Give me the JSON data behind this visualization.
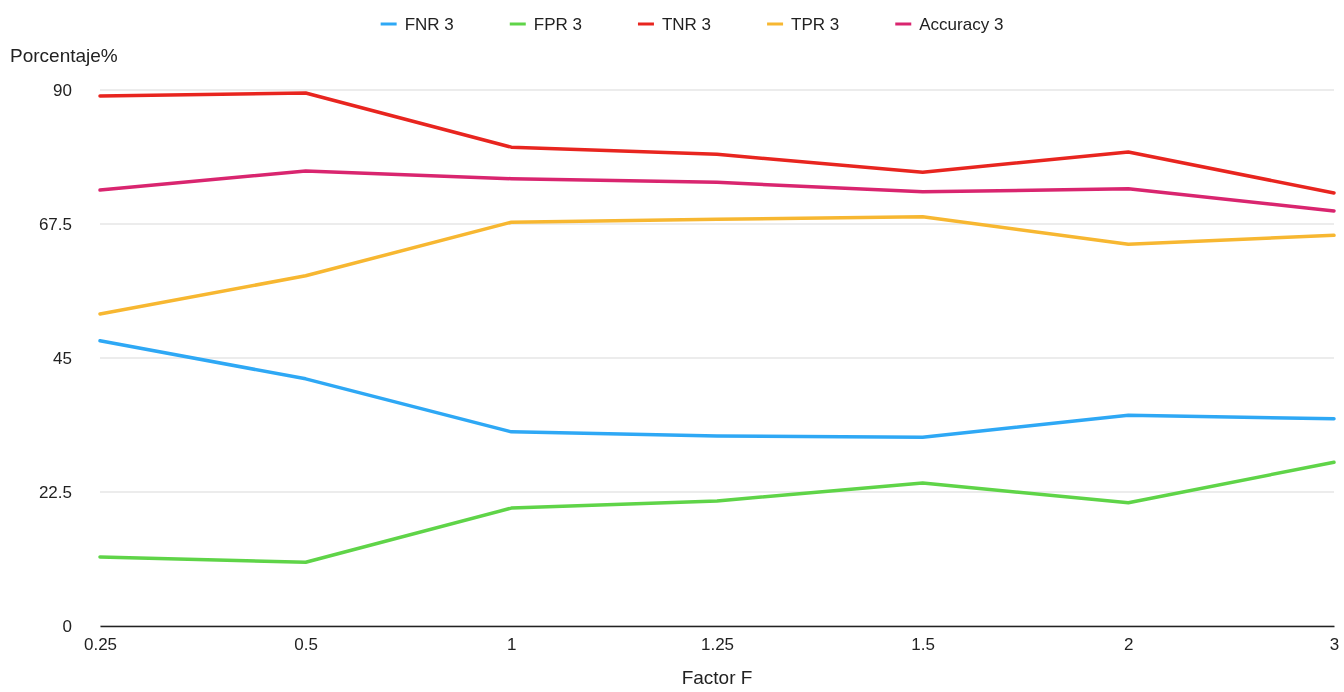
{
  "chart_data": {
    "type": "line",
    "xlabel": "Factor F",
    "ylabel": "Porcentaje%",
    "categories": [
      "0.25",
      "0.5",
      "1",
      "1.25",
      "1.5",
      "2",
      "3"
    ],
    "series": [
      {
        "name": "FNR 3",
        "color": "#2ea8f5",
        "values": [
          47.9,
          41.5,
          32.6,
          31.9,
          31.7,
          35.4,
          34.8
        ]
      },
      {
        "name": "FPR 3",
        "color": "#5fd448",
        "values": [
          11.6,
          10.7,
          19.8,
          21.0,
          24.0,
          20.7,
          27.5
        ]
      },
      {
        "name": "TNR 3",
        "color": "#e8251f",
        "values": [
          89.0,
          89.5,
          80.4,
          79.2,
          76.2,
          79.6,
          72.7
        ]
      },
      {
        "name": "TPR 3",
        "color": "#f7b731",
        "values": [
          52.4,
          58.8,
          67.8,
          68.3,
          68.7,
          64.1,
          65.6
        ]
      },
      {
        "name": "Accuracy 3",
        "color": "#d9256f",
        "values": [
          73.2,
          76.4,
          75.1,
          74.5,
          72.9,
          73.4,
          69.7
        ]
      }
    ],
    "ylim": [
      0,
      90
    ],
    "yticks": [
      0,
      22.5,
      45,
      67.5,
      90
    ],
    "grid": "y",
    "legend": "top",
    "marker": "none",
    "line_style": "solid"
  }
}
